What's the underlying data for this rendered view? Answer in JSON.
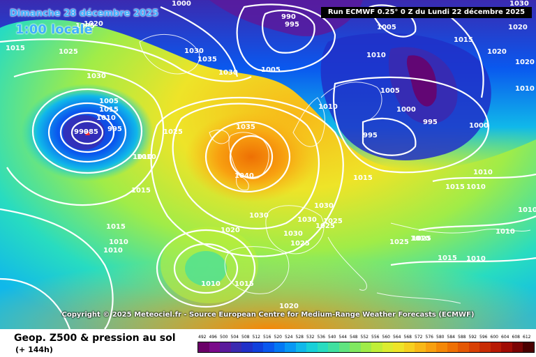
{
  "header": {
    "date_text": "Dimanche 28 décembre 2025",
    "time_text": "1:00 locale",
    "run_text": "Run ECMWF 0.25° 0 Z du Lundi 22 décembre 2025"
  },
  "footer": {
    "copyright": "Copyright © 2025 Meteociel.fr - Source European Centre for Medium-Range Weather Forecasts (ECMWF)",
    "product_title": "Geop. Z500 & pression au sol",
    "lead_time": "(+ 144h)"
  },
  "legend": {
    "ticks": [
      "492",
      "496",
      "500",
      "504",
      "508",
      "512",
      "516",
      "520",
      "524",
      "528",
      "532",
      "536",
      "540",
      "544",
      "548",
      "552",
      "556",
      "560",
      "564",
      "568",
      "572",
      "576",
      "580",
      "584",
      "588",
      "592",
      "596",
      "600",
      "604",
      "608",
      "612"
    ],
    "colors": [
      "#6a0068",
      "#7a0a8a",
      "#5a1a9c",
      "#3a2ab0",
      "#2030c8",
      "#1040dc",
      "#0a58ee",
      "#0478f4",
      "#0898f4",
      "#10b8ea",
      "#18d0d8",
      "#28dcc0",
      "#40e0a0",
      "#60e480",
      "#80e860",
      "#a0ec48",
      "#c0ee38",
      "#dcec30",
      "#eee428",
      "#f6d020",
      "#f8b818",
      "#f8a010",
      "#f48808",
      "#ee7004",
      "#e45804",
      "#d84004",
      "#c82c04",
      "#b81a04",
      "#a00c04",
      "#7a0404",
      "#4a0000"
    ]
  },
  "isobars": [
    "1020",
    "1015",
    "1025",
    "1030",
    "1005",
    "1015",
    "1010",
    "990",
    "995",
    "1000",
    "995",
    "1005",
    "1010",
    "1005",
    "1015",
    "1010",
    "1030",
    "1035",
    "1030",
    "1005",
    "1015",
    "1020",
    "1030",
    "1020",
    "1020",
    "1010",
    "1005",
    "1010",
    "1000",
    "995",
    "1000",
    "995",
    "1025",
    "1035",
    "1040",
    "1010",
    "1015",
    "1015",
    "1010",
    "1010",
    "1030",
    "1030",
    "1030",
    "1025",
    "1030",
    "1025",
    "1025",
    "1010",
    "1010",
    "1015",
    "1010",
    "1010",
    "1020",
    "1010",
    "1010",
    "1015",
    "1020",
    "1010",
    "1015",
    "1025",
    "990",
    "985",
    "1025"
  ]
}
